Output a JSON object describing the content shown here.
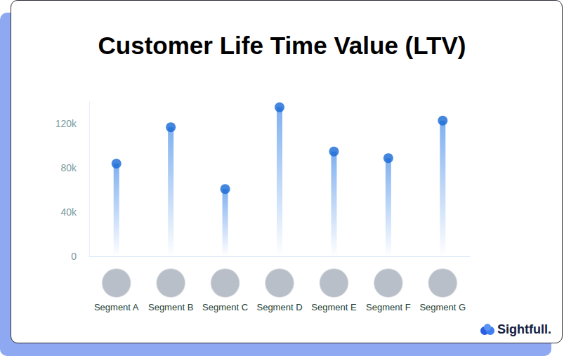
{
  "chart_data": {
    "type": "bar",
    "title": "Customer Life Time Value (LTV)",
    "categories": [
      "Segment A",
      "Segment B",
      "Segment C",
      "Segment D",
      "Segment E",
      "Segment F",
      "Segment G"
    ],
    "values": [
      84000,
      117000,
      61000,
      135000,
      95000,
      89000,
      123000
    ],
    "color": "#1769d6",
    "marker": "circle",
    "ylim": [
      0,
      140000
    ],
    "yticks": [
      0,
      {
        "value": 40000,
        "label": "40k"
      },
      {
        "value": 80000,
        "label": "80k"
      },
      {
        "value": 120000,
        "label": "120k"
      }
    ],
    "grid": false,
    "brand": "Sightfull."
  }
}
